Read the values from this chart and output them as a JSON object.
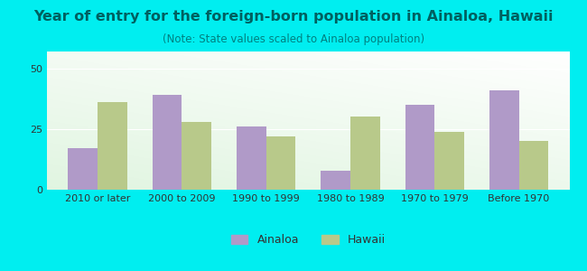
{
  "title": "Year of entry for the foreign-born population in Ainaloa, Hawaii",
  "subtitle": "(Note: State values scaled to Ainaloa population)",
  "categories": [
    "2010 or later",
    "2000 to 2009",
    "1990 to 1999",
    "1980 to 1989",
    "1970 to 1979",
    "Before 1970"
  ],
  "ainaloa_values": [
    17,
    39,
    26,
    8,
    35,
    41
  ],
  "hawaii_values": [
    36,
    28,
    22,
    30,
    24,
    20
  ],
  "ainaloa_color": "#b09ac8",
  "hawaii_color": "#b8c98a",
  "background_outer": "#00eef0",
  "title_color": "#006060",
  "subtitle_color": "#008080",
  "ylim": [
    0,
    57
  ],
  "yticks": [
    0,
    25,
    50
  ],
  "bar_width": 0.35,
  "title_fontsize": 11.5,
  "subtitle_fontsize": 8.5,
  "tick_fontsize": 8,
  "legend_fontsize": 9
}
